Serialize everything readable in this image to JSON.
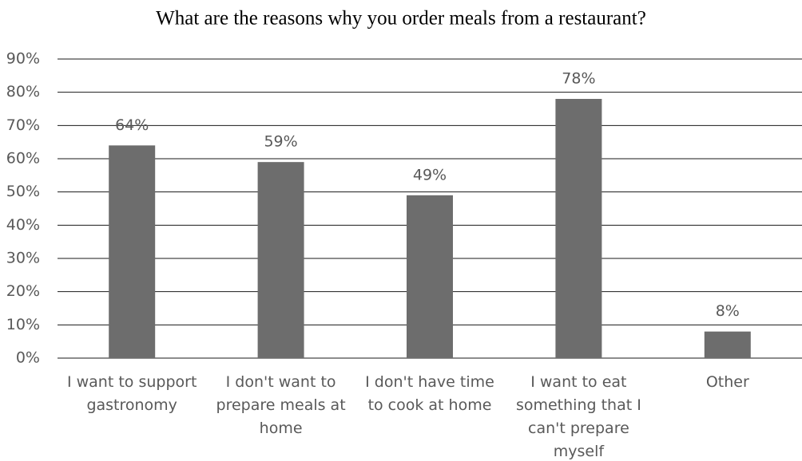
{
  "chart_data": {
    "type": "bar",
    "title": "What are the reasons why you order meals from a restaurant?",
    "categories": [
      "I want to support gastronomy",
      "I don't want to prepare meals at home",
      "I don't have time to cook at home",
      "I want to eat something that I can't prepare myself",
      "Other"
    ],
    "values": [
      64,
      59,
      49,
      78,
      8
    ],
    "value_labels": [
      "64%",
      "59%",
      "49%",
      "78%",
      "8%"
    ],
    "color": "#6d6d6d",
    "ylim": [
      0,
      90
    ],
    "yticks": [
      {
        "value": 0,
        "label": "0%"
      },
      {
        "value": 10,
        "label": "10%"
      },
      {
        "value": 20,
        "label": "20%"
      },
      {
        "value": 30,
        "label": "30%"
      },
      {
        "value": 40,
        "label": "40%"
      },
      {
        "value": 50,
        "label": "50%"
      },
      {
        "value": 60,
        "label": "60%"
      },
      {
        "value": 70,
        "label": "70%"
      },
      {
        "value": 80,
        "label": "80%"
      },
      {
        "value": 90,
        "label": "90%"
      }
    ],
    "grid": true
  }
}
